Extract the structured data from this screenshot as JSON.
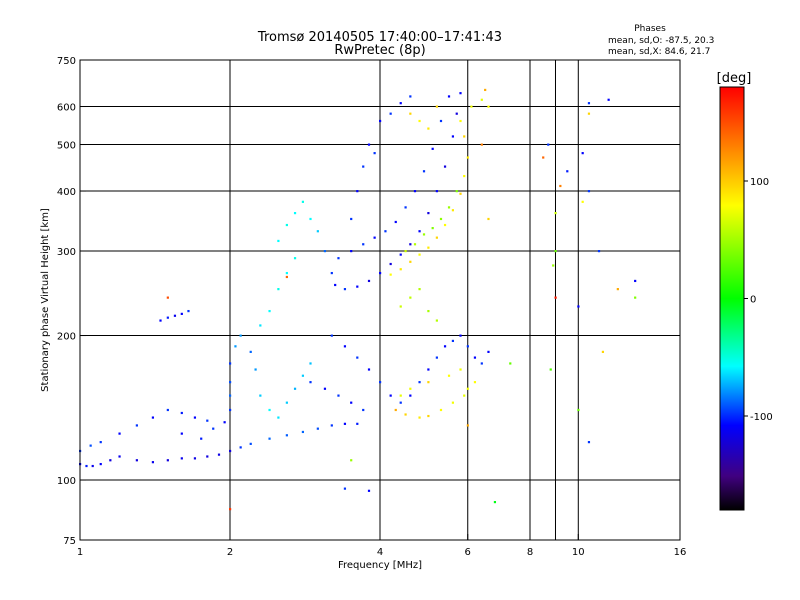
{
  "chart_data": {
    "type": "scatter",
    "title": "Tromsø 20140505 17:40:00–17:41:43",
    "subtitle": "RwPretec (8p)",
    "xlabel": "Frequency [MHz]",
    "ylabel": "Stationary phase Virtual Height [km]",
    "x_scale": "log",
    "y_scale": "log",
    "xlim": [
      1,
      16
    ],
    "ylim": [
      75,
      750
    ],
    "x_ticks": [
      1,
      2,
      4,
      6,
      8,
      10,
      16
    ],
    "y_ticks": [
      75,
      100,
      200,
      300,
      400,
      500,
      600,
      750
    ],
    "x_gridlines": [
      2,
      4,
      6,
      8,
      9,
      10
    ],
    "y_gridlines": [
      100,
      200,
      300,
      400,
      500,
      600
    ],
    "grid": true,
    "phase_stats": {
      "heading": "Phases",
      "o_line": "mean, sd,O: -87.5, 20.3",
      "x_line": "mean, sd,X:  84.6, 21.7"
    },
    "colorbar": {
      "label": "[deg]",
      "range": [
        -180,
        180
      ],
      "ticks": [
        100,
        0,
        -100
      ],
      "colors": [
        "#ff0000",
        "#ff8000",
        "#ffff00",
        "#00ff00",
        "#00ffff",
        "#0000ff",
        "#400080",
        "#000000"
      ]
    },
    "series": [
      {
        "values": [
          [
            1.0,
            108,
            -110
          ],
          [
            1.03,
            107,
            -105
          ],
          [
            1.06,
            107,
            -115
          ],
          [
            1.1,
            108,
            -110
          ],
          [
            1.15,
            110,
            -120
          ],
          [
            1.2,
            112,
            -115
          ],
          [
            1.3,
            110,
            -120
          ],
          [
            1.4,
            109,
            -115
          ],
          [
            1.5,
            110,
            -120
          ],
          [
            1.6,
            111,
            -115
          ],
          [
            1.7,
            111,
            -118
          ],
          [
            1.8,
            112,
            -120
          ],
          [
            1.9,
            113,
            -118
          ],
          [
            2.0,
            115,
            -120
          ],
          [
            2.1,
            117,
            -100
          ],
          [
            2.2,
            119,
            -95
          ],
          [
            2.4,
            122,
            -90
          ],
          [
            2.6,
            124,
            -92
          ],
          [
            2.8,
            126,
            -90
          ],
          [
            3.0,
            128,
            -95
          ],
          [
            3.2,
            130,
            -100
          ],
          [
            3.4,
            131,
            -110
          ],
          [
            3.6,
            131,
            -105
          ],
          [
            1.0,
            115,
            -100
          ],
          [
            1.05,
            118,
            -95
          ],
          [
            1.1,
            120,
            -100
          ],
          [
            1.2,
            125,
            -110
          ],
          [
            1.3,
            130,
            -100
          ],
          [
            1.4,
            135,
            -110
          ],
          [
            1.5,
            140,
            -100
          ],
          [
            1.6,
            138,
            -105
          ],
          [
            1.7,
            135,
            -110
          ],
          [
            1.8,
            133,
            -100
          ],
          [
            1.6,
            125,
            -110
          ],
          [
            1.75,
            122,
            -105
          ],
          [
            1.85,
            128,
            -100
          ],
          [
            1.95,
            132,
            -110
          ],
          [
            1.45,
            215,
            -110
          ],
          [
            1.5,
            218,
            -105
          ],
          [
            1.55,
            220,
            -115
          ],
          [
            1.6,
            222,
            -110
          ],
          [
            1.65,
            225,
            -100
          ],
          [
            2.0,
            140,
            -100
          ],
          [
            2.0,
            150,
            -90
          ],
          [
            2.0,
            160,
            -95
          ],
          [
            2.0,
            175,
            -100
          ],
          [
            2.05,
            190,
            -80
          ],
          [
            2.1,
            200,
            -80
          ],
          [
            2.2,
            185,
            -90
          ],
          [
            2.25,
            170,
            -80
          ],
          [
            2.3,
            150,
            -70
          ],
          [
            2.4,
            140,
            -60
          ],
          [
            2.5,
            135,
            -65
          ],
          [
            2.6,
            145,
            -70
          ],
          [
            2.7,
            155,
            -75
          ],
          [
            2.8,
            165,
            -70
          ],
          [
            2.9,
            175,
            -72
          ],
          [
            2.3,
            210,
            -65
          ],
          [
            2.4,
            225,
            -60
          ],
          [
            2.5,
            250,
            -55
          ],
          [
            2.6,
            270,
            -60
          ],
          [
            2.7,
            290,
            -55
          ],
          [
            2.5,
            315,
            -60
          ],
          [
            2.6,
            340,
            -55
          ],
          [
            2.7,
            360,
            -60
          ],
          [
            2.8,
            380,
            -55
          ],
          [
            2.9,
            350,
            -60
          ],
          [
            3.0,
            330,
            -70
          ],
          [
            3.1,
            300,
            -90
          ],
          [
            3.2,
            270,
            -100
          ],
          [
            3.25,
            255,
            -110
          ],
          [
            3.4,
            250,
            -100
          ],
          [
            3.6,
            253,
            -110
          ],
          [
            3.8,
            260,
            -120
          ],
          [
            4.0,
            270,
            -110
          ],
          [
            4.2,
            282,
            -120
          ],
          [
            4.4,
            295,
            -110
          ],
          [
            4.6,
            310,
            -120
          ],
          [
            4.8,
            330,
            -110
          ],
          [
            5.0,
            360,
            -120
          ],
          [
            5.2,
            400,
            -110
          ],
          [
            5.4,
            450,
            -120
          ],
          [
            5.6,
            520,
            -110
          ],
          [
            5.7,
            580,
            -120
          ],
          [
            5.8,
            640,
            -110
          ],
          [
            3.3,
            290,
            -100
          ],
          [
            3.5,
            300,
            -110
          ],
          [
            3.7,
            310,
            -100
          ],
          [
            3.9,
            320,
            -110
          ],
          [
            4.1,
            330,
            -100
          ],
          [
            4.3,
            345,
            -110
          ],
          [
            4.5,
            370,
            -100
          ],
          [
            4.7,
            400,
            -110
          ],
          [
            4.9,
            440,
            -100
          ],
          [
            5.1,
            490,
            -110
          ],
          [
            5.3,
            560,
            -100
          ],
          [
            5.5,
            630,
            -110
          ],
          [
            3.5,
            350,
            -100
          ],
          [
            3.6,
            400,
            -110
          ],
          [
            3.7,
            450,
            -100
          ],
          [
            3.8,
            500,
            -110
          ],
          [
            3.9,
            480,
            -100
          ],
          [
            4.0,
            560,
            -110
          ],
          [
            4.2,
            580,
            -100
          ],
          [
            4.4,
            610,
            -110
          ],
          [
            4.6,
            630,
            -100
          ],
          [
            3.2,
            200,
            -100
          ],
          [
            3.4,
            190,
            -110
          ],
          [
            3.6,
            180,
            -100
          ],
          [
            3.8,
            170,
            -110
          ],
          [
            4.0,
            160,
            -100
          ],
          [
            4.2,
            150,
            -110
          ],
          [
            4.4,
            145,
            -100
          ],
          [
            4.6,
            150,
            -110
          ],
          [
            4.8,
            160,
            -100
          ],
          [
            5.0,
            170,
            -110
          ],
          [
            5.2,
            180,
            -100
          ],
          [
            5.4,
            190,
            -110
          ],
          [
            5.6,
            195,
            -100
          ],
          [
            5.8,
            200,
            -110
          ],
          [
            6.0,
            190,
            -100
          ],
          [
            6.2,
            180,
            -110
          ],
          [
            6.4,
            175,
            -100
          ],
          [
            6.6,
            185,
            -110
          ],
          [
            2.9,
            160,
            -100
          ],
          [
            3.1,
            155,
            -110
          ],
          [
            3.3,
            150,
            -100
          ],
          [
            3.5,
            145,
            -110
          ],
          [
            3.7,
            140,
            -100
          ],
          [
            10.5,
            610,
            -100
          ],
          [
            11.5,
            620,
            -110
          ],
          [
            10.5,
            400,
            -100
          ],
          [
            10.2,
            480,
            -110
          ],
          [
            9.5,
            440,
            -105
          ],
          [
            8.7,
            500,
            -100
          ],
          [
            13.0,
            260,
            -110
          ],
          [
            11.0,
            300,
            -100
          ],
          [
            10.0,
            230,
            -110
          ],
          [
            10.5,
            120,
            -100
          ],
          [
            3.8,
            95,
            -110
          ],
          [
            3.4,
            96,
            -100
          ]
        ]
      },
      {
        "values": [
          [
            4.2,
            268,
            100
          ],
          [
            4.4,
            275,
            105
          ],
          [
            4.6,
            285,
            110
          ],
          [
            4.8,
            295,
            100
          ],
          [
            5.0,
            305,
            105
          ],
          [
            5.2,
            320,
            110
          ],
          [
            5.4,
            340,
            100
          ],
          [
            5.6,
            365,
            105
          ],
          [
            5.8,
            395,
            110
          ],
          [
            5.9,
            430,
            100
          ],
          [
            6.0,
            470,
            105
          ],
          [
            5.9,
            520,
            110
          ],
          [
            5.8,
            560,
            100
          ],
          [
            6.1,
            600,
            95
          ],
          [
            6.4,
            620,
            90
          ],
          [
            4.5,
            300,
            80
          ],
          [
            4.7,
            310,
            70
          ],
          [
            4.9,
            325,
            60
          ],
          [
            5.1,
            335,
            50
          ],
          [
            5.3,
            350,
            55
          ],
          [
            5.5,
            370,
            60
          ],
          [
            5.7,
            400,
            50
          ],
          [
            4.4,
            230,
            80
          ],
          [
            4.6,
            240,
            75
          ],
          [
            4.8,
            250,
            70
          ],
          [
            5.0,
            225,
            65
          ],
          [
            5.2,
            215,
            70
          ],
          [
            4.3,
            140,
            120
          ],
          [
            4.5,
            137,
            110
          ],
          [
            4.8,
            135,
            105
          ],
          [
            5.0,
            136,
            110
          ],
          [
            5.3,
            140,
            100
          ],
          [
            5.6,
            145,
            95
          ],
          [
            5.9,
            150,
            90
          ],
          [
            6.0,
            155,
            95
          ],
          [
            6.2,
            160,
            100
          ],
          [
            4.4,
            150,
            90
          ],
          [
            4.6,
            155,
            95
          ],
          [
            5.0,
            160,
            110
          ],
          [
            5.5,
            165,
            100
          ],
          [
            5.8,
            170,
            95
          ],
          [
            4.6,
            580,
            110
          ],
          [
            4.8,
            560,
            100
          ],
          [
            5.0,
            540,
            105
          ],
          [
            5.2,
            600,
            110
          ],
          [
            6.5,
            650,
            120
          ],
          [
            6.6,
            600,
            100
          ],
          [
            6.4,
            500,
            130
          ],
          [
            6.6,
            350,
            110
          ],
          [
            8.5,
            470,
            140
          ],
          [
            9.2,
            410,
            130
          ],
          [
            9.0,
            360,
            80
          ],
          [
            10.5,
            580,
            110
          ],
          [
            8.9,
            280,
            60
          ],
          [
            10.2,
            380,
            100
          ],
          [
            12.0,
            250,
            120
          ],
          [
            13.0,
            240,
            50
          ],
          [
            9.0,
            300,
            40
          ],
          [
            1.5,
            240,
            150
          ],
          [
            2.6,
            265,
            140
          ],
          [
            2.0,
            87,
            160
          ],
          [
            3.5,
            110,
            60
          ],
          [
            6.0,
            130,
            120
          ],
          [
            7.3,
            175,
            40
          ],
          [
            10.0,
            140,
            40
          ],
          [
            6.8,
            90,
            -5
          ],
          [
            8.8,
            170,
            30
          ],
          [
            11.2,
            185,
            110
          ],
          [
            9.0,
            240,
            170
          ]
        ]
      }
    ]
  }
}
